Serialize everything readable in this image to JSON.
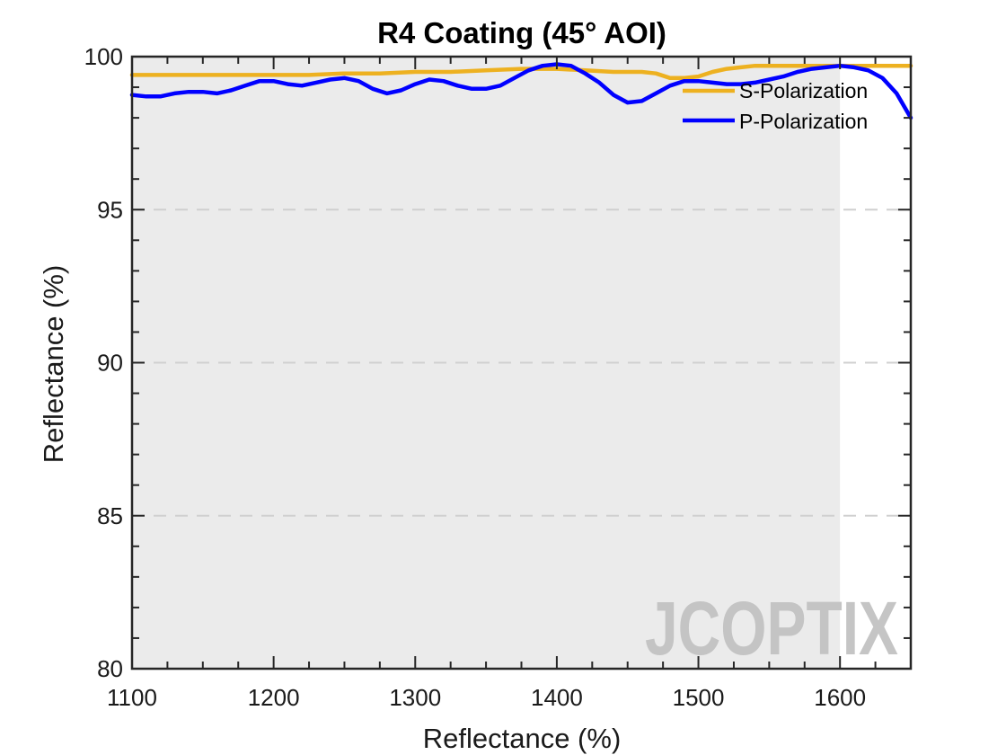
{
  "chart_data": {
    "type": "line",
    "title": "R4 Coating  (45° AOI)",
    "xlabel": "Reflectance (%)",
    "ylabel": "Reflectance (%)",
    "xlim": [
      1100,
      1650
    ],
    "ylim": [
      80,
      100
    ],
    "xticks": [
      1100,
      1200,
      1300,
      1400,
      1500,
      1600
    ],
    "yticks": [
      80,
      85,
      90,
      95,
      100
    ],
    "grid": "horizontal dashed",
    "shaded_band": [
      1100,
      1600
    ],
    "legend_position": "top-right",
    "series": [
      {
        "name": "S-Polarization",
        "color": "#EDB120",
        "x": [
          1100,
          1125,
          1150,
          1175,
          1200,
          1225,
          1250,
          1275,
          1300,
          1325,
          1350,
          1375,
          1400,
          1420,
          1440,
          1460,
          1470,
          1480,
          1490,
          1500,
          1510,
          1520,
          1530,
          1540,
          1560,
          1580,
          1600,
          1625,
          1650
        ],
        "y": [
          99.4,
          99.4,
          99.4,
          99.4,
          99.4,
          99.4,
          99.45,
          99.45,
          99.5,
          99.5,
          99.55,
          99.6,
          99.6,
          99.55,
          99.5,
          99.5,
          99.45,
          99.3,
          99.3,
          99.35,
          99.5,
          99.6,
          99.65,
          99.7,
          99.7,
          99.7,
          99.7,
          99.7,
          99.7
        ]
      },
      {
        "name": "P-Polarization",
        "color": "#0000FF",
        "x": [
          1100,
          1110,
          1120,
          1130,
          1140,
          1150,
          1160,
          1170,
          1180,
          1190,
          1200,
          1210,
          1220,
          1230,
          1240,
          1250,
          1260,
          1270,
          1280,
          1290,
          1300,
          1310,
          1320,
          1330,
          1340,
          1350,
          1360,
          1370,
          1380,
          1390,
          1400,
          1410,
          1420,
          1430,
          1440,
          1450,
          1460,
          1470,
          1480,
          1490,
          1500,
          1510,
          1520,
          1530,
          1540,
          1550,
          1560,
          1570,
          1580,
          1590,
          1600,
          1610,
          1620,
          1630,
          1640,
          1650
        ],
        "y": [
          98.75,
          98.7,
          98.7,
          98.8,
          98.85,
          98.85,
          98.8,
          98.9,
          99.05,
          99.2,
          99.2,
          99.1,
          99.05,
          99.15,
          99.25,
          99.3,
          99.2,
          98.95,
          98.8,
          98.9,
          99.1,
          99.25,
          99.2,
          99.05,
          98.95,
          98.95,
          99.05,
          99.3,
          99.55,
          99.7,
          99.75,
          99.7,
          99.45,
          99.15,
          98.75,
          98.5,
          98.55,
          98.8,
          99.05,
          99.2,
          99.2,
          99.15,
          99.1,
          99.1,
          99.15,
          99.25,
          99.35,
          99.5,
          99.6,
          99.65,
          99.7,
          99.65,
          99.55,
          99.3,
          98.8,
          98.0
        ]
      }
    ]
  },
  "watermark": {
    "text": "JCOPTIX",
    "main_color": "#c2c2c2",
    "accent_color": "#ecc9a6"
  }
}
